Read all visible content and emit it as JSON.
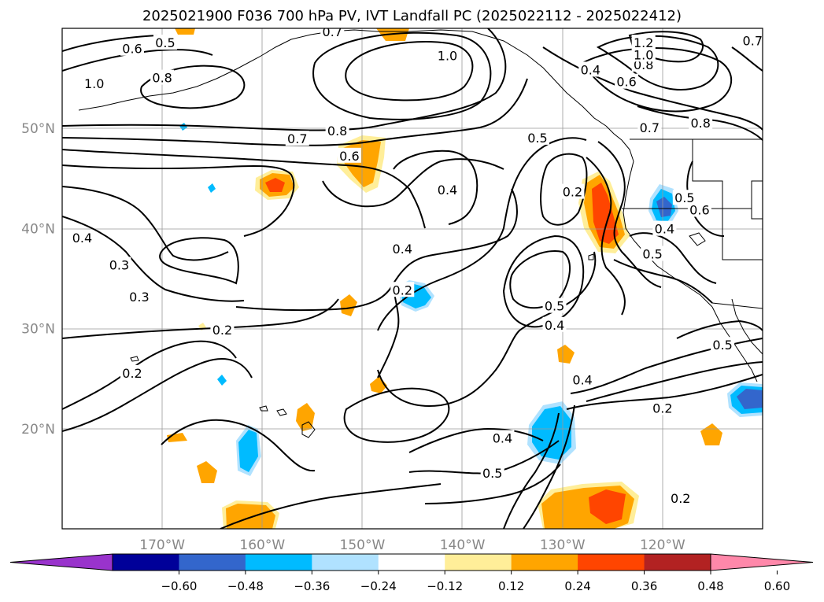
{
  "chart_data": {
    "type": "map",
    "title": "2025021900 F036 700 hPa PV, IVT Landfall PC (2025022112 - 2025022412)",
    "lon_range": [
      -180,
      -110
    ],
    "lat_range": [
      10,
      60
    ],
    "x_ticks": [
      {
        "value": -170,
        "label": "170°W"
      },
      {
        "value": -160,
        "label": "160°W"
      },
      {
        "value": -150,
        "label": "150°W"
      },
      {
        "value": -140,
        "label": "140°W"
      },
      {
        "value": -130,
        "label": "130°W"
      },
      {
        "value": -120,
        "label": "120°W"
      }
    ],
    "y_ticks": [
      {
        "value": 20,
        "label": "20°N"
      },
      {
        "value": 30,
        "label": "30°N"
      },
      {
        "value": 40,
        "label": "40°N"
      },
      {
        "value": 50,
        "label": "50°N"
      }
    ],
    "grid": true,
    "colorbar": {
      "orientation": "horizontal",
      "extend": "both",
      "bins": [
        {
          "color": "#9933cc"
        },
        {
          "color": "#000099"
        },
        {
          "color": "#3366cc"
        },
        {
          "color": "#00bbff"
        },
        {
          "color": "#b0e2ff"
        },
        {
          "color": "#ffffff"
        },
        {
          "color": "#ffee99"
        },
        {
          "color": "#ffa500"
        },
        {
          "color": "#ff4500"
        },
        {
          "color": "#b22222"
        },
        {
          "color": "#ff88aa"
        }
      ],
      "tick_labels": [
        "−0.60",
        "−0.48",
        "−0.36",
        "−0.24",
        "−0.12",
        "0.12",
        "0.24",
        "0.36",
        "0.48",
        "0.60"
      ]
    },
    "contour_labels": [
      {
        "text": "1.0",
        "lon": -141.5,
        "lat": 57.2
      },
      {
        "text": "0.8",
        "lon": -152.5,
        "lat": 49.7
      },
      {
        "text": "0.7",
        "lon": -156.5,
        "lat": 48.9
      },
      {
        "text": "0.6",
        "lon": -151.3,
        "lat": 47.2
      },
      {
        "text": "0.5",
        "lon": -132.5,
        "lat": 49.0
      },
      {
        "text": "0.4",
        "lon": -141.5,
        "lat": 43.8
      },
      {
        "text": "0.4",
        "lon": -178.0,
        "lat": 39.0
      },
      {
        "text": "0.3",
        "lon": -174.3,
        "lat": 36.3
      },
      {
        "text": "0.3",
        "lon": -172.3,
        "lat": 33.1
      },
      {
        "text": "0.2",
        "lon": -164.0,
        "lat": 29.8
      },
      {
        "text": "0.2",
        "lon": -173.0,
        "lat": 25.5
      },
      {
        "text": "0.4",
        "lon": -146.0,
        "lat": 37.9
      },
      {
        "text": "0.2",
        "lon": -146.0,
        "lat": 33.8
      },
      {
        "text": "0.2",
        "lon": -129.0,
        "lat": 43.6
      },
      {
        "text": "0.5",
        "lon": -130.8,
        "lat": 32.2
      },
      {
        "text": "0.4",
        "lon": -130.8,
        "lat": 30.3
      },
      {
        "text": "0.4",
        "lon": -128.0,
        "lat": 24.8
      },
      {
        "text": "0.4",
        "lon": -136.0,
        "lat": 19.0
      },
      {
        "text": "0.5",
        "lon": -137.0,
        "lat": 15.5
      },
      {
        "text": "0.2",
        "lon": -120.0,
        "lat": 22.0
      },
      {
        "text": "0.2",
        "lon": -118.2,
        "lat": 13.0
      },
      {
        "text": "0.4",
        "lon": -119.8,
        "lat": 39.9
      },
      {
        "text": "0.5",
        "lon": -121.0,
        "lat": 37.4
      },
      {
        "text": "0.5",
        "lon": -114.0,
        "lat": 28.3
      },
      {
        "text": "0.6",
        "lon": -116.3,
        "lat": 41.8
      },
      {
        "text": "0.5",
        "lon": -117.8,
        "lat": 43.0
      },
      {
        "text": "0.7",
        "lon": -121.3,
        "lat": 50.0
      },
      {
        "text": "0.8",
        "lon": -116.2,
        "lat": 50.5
      },
      {
        "text": "0.6",
        "lon": -123.6,
        "lat": 54.6
      },
      {
        "text": "0.8",
        "lon": -121.9,
        "lat": 56.3
      },
      {
        "text": "1.0",
        "lon": -121.9,
        "lat": 57.3
      },
      {
        "text": "1.2",
        "lon": -121.9,
        "lat": 58.5
      },
      {
        "text": "0.4",
        "lon": -127.2,
        "lat": 55.8
      },
      {
        "text": "0.7",
        "lon": -111.0,
        "lat": 58.7
      },
      {
        "text": "0.6",
        "lon": -173.0,
        "lat": 57.9
      },
      {
        "text": "0.5",
        "lon": -169.7,
        "lat": 58.5
      },
      {
        "text": "0.8",
        "lon": -170.0,
        "lat": 55.0
      },
      {
        "text": "1.0",
        "lon": -176.8,
        "lat": 54.4
      },
      {
        "text": "0.7",
        "lon": -153.0,
        "lat": 59.6
      }
    ]
  }
}
